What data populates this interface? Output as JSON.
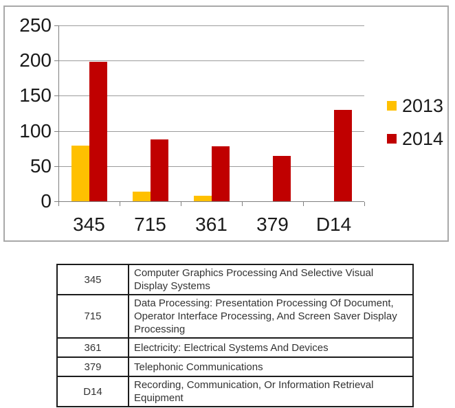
{
  "chart_data": {
    "type": "bar",
    "categories": [
      "345",
      "715",
      "361",
      "379",
      "D14"
    ],
    "series": [
      {
        "name": "2013",
        "color": "#FFC000",
        "values": [
          79,
          14,
          8,
          0,
          0
        ]
      },
      {
        "name": "2014",
        "color": "#C00000",
        "values": [
          198,
          88,
          78,
          64,
          130
        ]
      }
    ],
    "title": "",
    "xlabel": "",
    "ylabel": "",
    "ylim": [
      0,
      250
    ],
    "yticks": [
      0,
      50,
      100,
      150,
      200,
      250
    ],
    "grid": true,
    "legend_position": "right",
    "gridline_color": "#9b9b9b",
    "axis_color": "#7e7e7e"
  },
  "table": {
    "rows": [
      {
        "code": "345",
        "description": "Computer Graphics Processing And Selective Visual Display Systems"
      },
      {
        "code": "715",
        "description": "Data Processing: Presentation Processing Of Document, Operator Interface Processing, And Screen Saver Display Processing"
      },
      {
        "code": "361",
        "description": "Electricity: Electrical Systems And Devices"
      },
      {
        "code": "379",
        "description": "Telephonic Communications"
      },
      {
        "code": "D14",
        "description": "Recording, Communication, Or Information Retrieval Equipment"
      }
    ]
  }
}
